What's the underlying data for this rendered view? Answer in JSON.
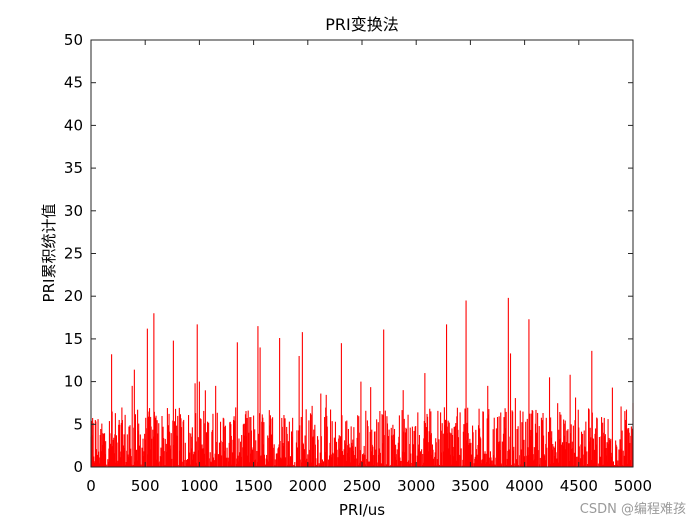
{
  "chart_data": {
    "type": "bar",
    "title": "PRI变换法",
    "xlabel": "PRI/us",
    "ylabel": "PRI累积统计值",
    "xlim": [
      0,
      5000
    ],
    "ylim": [
      0,
      50
    ],
    "xticks": [
      0,
      500,
      1000,
      1500,
      2000,
      2500,
      3000,
      3500,
      4000,
      4500,
      5000
    ],
    "yticks": [
      0,
      5,
      10,
      15,
      20,
      25,
      30,
      35,
      40,
      45,
      50
    ],
    "color": "#ff0000",
    "grid": false,
    "baseline_range": [
      0,
      7
    ],
    "peaks": [
      {
        "x": 40,
        "y": 5.5
      },
      {
        "x": 190,
        "y": 13.2
      },
      {
        "x": 380,
        "y": 9.5
      },
      {
        "x": 400,
        "y": 11.4
      },
      {
        "x": 520,
        "y": 16.2
      },
      {
        "x": 580,
        "y": 18.0
      },
      {
        "x": 760,
        "y": 14.8
      },
      {
        "x": 960,
        "y": 9.8
      },
      {
        "x": 980,
        "y": 16.7
      },
      {
        "x": 1000,
        "y": 10.0
      },
      {
        "x": 1150,
        "y": 9.5
      },
      {
        "x": 1350,
        "y": 14.6
      },
      {
        "x": 1540,
        "y": 16.5
      },
      {
        "x": 1560,
        "y": 14.0
      },
      {
        "x": 1740,
        "y": 15.1
      },
      {
        "x": 1920,
        "y": 13.0
      },
      {
        "x": 1950,
        "y": 15.8
      },
      {
        "x": 2120,
        "y": 8.6
      },
      {
        "x": 2310,
        "y": 14.5
      },
      {
        "x": 2490,
        "y": 10.0
      },
      {
        "x": 2700,
        "y": 16.1
      },
      {
        "x": 2880,
        "y": 9.0
      },
      {
        "x": 3080,
        "y": 11.0
      },
      {
        "x": 3280,
        "y": 16.7
      },
      {
        "x": 3460,
        "y": 19.5
      },
      {
        "x": 3660,
        "y": 9.5
      },
      {
        "x": 3850,
        "y": 19.8
      },
      {
        "x": 3870,
        "y": 13.3
      },
      {
        "x": 4040,
        "y": 17.3
      },
      {
        "x": 4230,
        "y": 10.5
      },
      {
        "x": 4420,
        "y": 10.8
      },
      {
        "x": 4620,
        "y": 13.6
      },
      {
        "x": 4810,
        "y": 9.3
      },
      {
        "x": 5000,
        "y": 7.5
      }
    ]
  },
  "watermark": "CSDN @编程难孩"
}
